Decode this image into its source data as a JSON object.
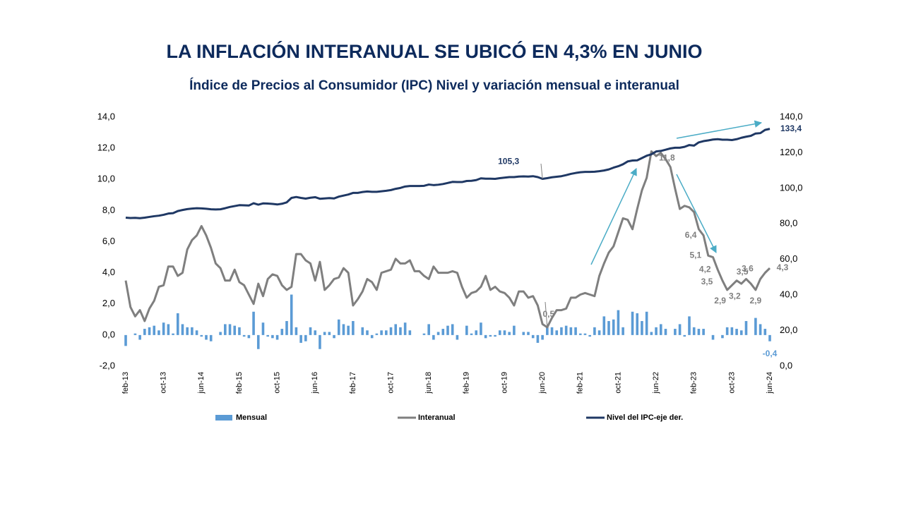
{
  "chart_data": {
    "type": "combo",
    "title": "LA INFLACIÓN INTERANUAL SE UBICÓ EN 4,3% EN JUNIO",
    "subtitle": "Índice de Precios al Consumidor (IPC) Nivel y variación mensual e interanual",
    "categories": [
      "feb-13",
      null,
      null,
      null,
      null,
      null,
      null,
      null,
      "oct-13",
      null,
      null,
      null,
      null,
      null,
      null,
      null,
      "jun-14",
      null,
      null,
      null,
      null,
      null,
      null,
      null,
      "feb-15",
      null,
      null,
      null,
      null,
      null,
      null,
      null,
      "oct-15",
      null,
      null,
      null,
      null,
      null,
      null,
      null,
      "jun-16",
      null,
      null,
      null,
      null,
      null,
      null,
      null,
      "feb-17",
      null,
      null,
      null,
      null,
      null,
      null,
      null,
      "oct-17",
      null,
      null,
      null,
      null,
      null,
      null,
      null,
      "jun-18",
      null,
      null,
      null,
      null,
      null,
      null,
      null,
      "feb-19",
      null,
      null,
      null,
      null,
      null,
      null,
      null,
      "oct-19",
      null,
      null,
      null,
      null,
      null,
      null,
      null,
      "jun-20",
      null,
      null,
      null,
      null,
      null,
      null,
      null,
      "feb-21",
      null,
      null,
      null,
      null,
      null,
      null,
      null,
      "oct-21",
      null,
      null,
      null,
      null,
      null,
      null,
      null,
      "jun-22",
      null,
      null,
      null,
      null,
      null,
      null,
      null,
      "feb-23",
      null,
      null,
      null,
      null,
      null,
      null,
      null,
      "oct-23",
      null,
      null,
      null,
      null,
      null,
      null,
      null,
      "jun-24"
    ],
    "ylim": [
      -2,
      14
    ],
    "yticks": [
      {
        "value": -2,
        "label": "-2,0"
      },
      {
        "value": 0,
        "label": "0,0"
      },
      {
        "value": 2,
        "label": "2,0"
      },
      {
        "value": 4,
        "label": "4,0"
      },
      {
        "value": 6,
        "label": "6,0"
      },
      {
        "value": 8,
        "label": "8,0"
      },
      {
        "value": 10,
        "label": "10,0"
      },
      {
        "value": 12,
        "label": "12,0"
      },
      {
        "value": 14,
        "label": "14,0"
      }
    ],
    "y2lim": [
      0,
      140
    ],
    "y2ticks": [
      {
        "value": 0,
        "label": "0,0"
      },
      {
        "value": 20,
        "label": "20,0"
      },
      {
        "value": 40,
        "label": "40,0"
      },
      {
        "value": 60,
        "label": "60,0"
      },
      {
        "value": 80,
        "label": "80,0"
      },
      {
        "value": 100,
        "label": "100,0"
      },
      {
        "value": 120,
        "label": "120,0"
      },
      {
        "value": 140,
        "label": "140,0"
      }
    ],
    "grid": false,
    "legend": "bottom",
    "series": [
      {
        "name": "Mensual",
        "type": "bar",
        "color": "#5b9bd5",
        "values": [
          -0.7,
          0.0,
          0.1,
          -0.3,
          0.4,
          0.5,
          0.6,
          0.3,
          0.8,
          0.7,
          0.1,
          1.4,
          0.7,
          0.5,
          0.5,
          0.3,
          -0.1,
          -0.3,
          -0.4,
          0.0,
          0.2,
          0.7,
          0.7,
          0.6,
          0.5,
          -0.1,
          -0.2,
          1.5,
          -0.9,
          0.8,
          -0.1,
          -0.2,
          -0.3,
          0.4,
          0.9,
          2.6,
          0.5,
          -0.5,
          -0.4,
          0.5,
          0.3,
          -0.9,
          0.2,
          0.2,
          -0.2,
          1.0,
          0.7,
          0.6,
          0.9,
          0.0,
          0.5,
          0.3,
          -0.2,
          0.1,
          0.3,
          0.3,
          0.5,
          0.7,
          0.5,
          0.8,
          0.3,
          0.0,
          0.0,
          0.1,
          0.7,
          -0.3,
          0.2,
          0.4,
          0.6,
          0.7,
          -0.3,
          0.0,
          0.6,
          0.1,
          0.3,
          0.8,
          -0.2,
          -0.1,
          -0.1,
          0.3,
          0.3,
          0.2,
          0.6,
          0.0,
          0.2,
          0.2,
          -0.2,
          -0.5,
          -0.3,
          0.5,
          0.5,
          0.3,
          0.5,
          0.6,
          0.5,
          0.5,
          0.1,
          0.1,
          -0.1,
          0.5,
          0.3,
          1.2,
          0.9,
          1.0,
          1.6,
          0.5,
          0.0,
          1.5,
          1.4,
          0.9,
          1.5,
          0.2,
          0.5,
          0.7,
          0.4,
          0.0,
          0.4,
          0.7,
          -0.1,
          1.2,
          0.5,
          0.4,
          0.4,
          0.0,
          -0.3,
          0.0,
          -0.2,
          0.5,
          0.5,
          0.4,
          0.3,
          0.9,
          0.0,
          1.1,
          0.7,
          0.4,
          -0.4
        ],
        "value_labels": [
          null,
          null,
          null,
          null,
          null,
          null,
          null,
          null,
          null,
          null,
          null,
          null,
          null,
          null,
          null,
          null,
          null,
          null,
          null,
          null,
          null,
          null,
          null,
          null,
          null,
          null,
          null,
          null,
          null,
          null,
          null,
          null,
          null,
          null,
          null,
          null,
          null,
          null,
          null,
          null,
          null,
          null,
          null,
          null,
          null,
          null,
          null,
          null,
          null,
          null,
          null,
          null,
          null,
          null,
          null,
          null,
          null,
          null,
          null,
          null,
          null,
          null,
          null,
          null,
          null,
          null,
          null,
          null,
          null,
          null,
          null,
          null,
          null,
          null,
          null,
          null,
          null,
          null,
          null,
          null,
          null,
          null,
          null,
          null,
          null,
          null,
          null,
          null,
          null,
          null,
          null,
          null,
          null,
          null,
          null,
          null,
          null,
          null,
          null,
          null,
          null,
          null,
          null,
          null,
          null,
          null,
          null,
          null,
          null,
          null,
          null,
          null,
          null,
          null,
          null,
          null,
          null,
          null,
          null,
          null,
          null,
          null,
          null,
          null,
          null,
          null,
          null,
          null,
          null,
          null,
          null,
          null,
          null,
          null,
          null,
          null,
          "-0,4"
        ]
      },
      {
        "name": "Interanual",
        "type": "line",
        "color": "#7f7f7f",
        "values": [
          3.5,
          1.8,
          1.2,
          1.6,
          0.9,
          1.7,
          2.2,
          3.1,
          3.2,
          4.4,
          4.4,
          3.8,
          4.0,
          5.5,
          6.1,
          6.4,
          7.0,
          6.4,
          5.6,
          4.6,
          4.3,
          3.5,
          3.5,
          4.2,
          3.4,
          3.2,
          2.6,
          2.0,
          3.3,
          2.5,
          3.6,
          3.9,
          3.8,
          3.2,
          2.9,
          3.1,
          5.2,
          5.2,
          4.8,
          4.6,
          3.5,
          4.7,
          2.9,
          3.2,
          3.6,
          3.7,
          4.3,
          4.0,
          1.9,
          2.3,
          2.8,
          3.6,
          3.4,
          2.9,
          4.0,
          4.1,
          4.2,
          4.9,
          4.6,
          4.6,
          4.8,
          4.1,
          4.1,
          3.8,
          3.6,
          4.4,
          4.0,
          4.0,
          4.0,
          4.1,
          4.0,
          3.1,
          2.4,
          2.7,
          2.8,
          3.1,
          3.8,
          2.9,
          3.1,
          2.8,
          2.7,
          2.4,
          1.9,
          2.8,
          2.8,
          2.4,
          2.5,
          1.9,
          0.7,
          0.5,
          1.1,
          1.6,
          1.6,
          1.7,
          2.4,
          2.4,
          2.6,
          2.7,
          2.6,
          2.5,
          3.8,
          4.6,
          5.3,
          5.7,
          6.6,
          7.5,
          7.4,
          6.8,
          8.1,
          9.3,
          10.1,
          11.8,
          11.5,
          11.7,
          11.3,
          10.8,
          9.4,
          8.1,
          8.3,
          8.2,
          7.9,
          6.8,
          6.4,
          5.1,
          5.0,
          4.2,
          3.5,
          2.9,
          3.2,
          3.5,
          3.3,
          3.6,
          3.3,
          2.9,
          3.6,
          4.0,
          4.3
        ],
        "value_labels": [
          null,
          null,
          null,
          null,
          null,
          null,
          null,
          null,
          null,
          null,
          null,
          null,
          null,
          null,
          null,
          null,
          null,
          null,
          null,
          null,
          null,
          null,
          null,
          null,
          null,
          null,
          null,
          null,
          null,
          null,
          null,
          null,
          null,
          null,
          null,
          null,
          null,
          null,
          null,
          null,
          null,
          null,
          null,
          null,
          null,
          null,
          null,
          null,
          null,
          null,
          null,
          null,
          null,
          null,
          null,
          null,
          null,
          null,
          null,
          null,
          null,
          null,
          null,
          null,
          null,
          null,
          null,
          null,
          null,
          null,
          null,
          null,
          null,
          null,
          null,
          null,
          null,
          null,
          null,
          null,
          null,
          null,
          null,
          null,
          null,
          null,
          null,
          null,
          null,
          "0,5",
          null,
          null,
          null,
          null,
          null,
          null,
          null,
          null,
          null,
          null,
          null,
          null,
          null,
          null,
          null,
          null,
          null,
          null,
          null,
          null,
          null,
          "11,8",
          null,
          null,
          null,
          null,
          null,
          null,
          null,
          null,
          null,
          null,
          "6,4",
          "5,1",
          null,
          "4,2",
          "3,5",
          "2,9",
          "3,2",
          "3,5",
          null,
          "3,6",
          null,
          "2,9",
          null,
          null,
          "4,3"
        ]
      },
      {
        "name": "Nivel del IPC-eje der.",
        "type": "line",
        "axis": "y2",
        "color": "#1f3864",
        "values": [
          83.5,
          83.3,
          83.4,
          83.2,
          83.5,
          83.9,
          84.3,
          84.6,
          85.1,
          85.8,
          86.0,
          87.2,
          87.8,
          88.3,
          88.6,
          88.8,
          88.7,
          88.5,
          88.2,
          88.1,
          88.2,
          88.8,
          89.5,
          90.0,
          90.5,
          90.4,
          90.3,
          91.6,
          90.8,
          91.5,
          91.4,
          91.2,
          90.9,
          91.3,
          92.1,
          94.6,
          95.1,
          94.6,
          94.2,
          94.7,
          95.0,
          94.1,
          94.3,
          94.5,
          94.3,
          95.3,
          95.9,
          96.5,
          97.4,
          97.4,
          97.9,
          98.2,
          98.0,
          98.0,
          98.3,
          98.6,
          99.0,
          99.7,
          100.2,
          101.0,
          101.3,
          101.3,
          101.3,
          101.4,
          102.1,
          101.8,
          102.0,
          102.4,
          103.0,
          103.6,
          103.5,
          103.5,
          104.1,
          104.2,
          104.6,
          105.6,
          105.4,
          105.4,
          105.3,
          105.7,
          106.0,
          106.3,
          106.3,
          106.6,
          106.7,
          106.6,
          106.8,
          106.3,
          105.3,
          105.7,
          106.2,
          106.5,
          106.8,
          107.4,
          108.1,
          108.6,
          109.0,
          109.2,
          109.2,
          109.3,
          109.6,
          110.0,
          110.6,
          111.6,
          112.4,
          113.5,
          115.1,
          115.6,
          115.7,
          117.0,
          118.3,
          119.1,
          120.7,
          121.0,
          121.7,
          122.4,
          122.8,
          122.8,
          123.3,
          124.3,
          124.0,
          125.8,
          126.5,
          126.9,
          127.4,
          127.6,
          127.3,
          127.3,
          127.1,
          127.6,
          128.4,
          129.0,
          129.5,
          130.8,
          131.0,
          132.8,
          133.4
        ],
        "value_labels": [
          null,
          null,
          null,
          null,
          null,
          null,
          null,
          null,
          null,
          null,
          null,
          null,
          null,
          null,
          null,
          null,
          null,
          null,
          null,
          null,
          null,
          null,
          null,
          null,
          null,
          null,
          null,
          null,
          null,
          null,
          null,
          null,
          null,
          null,
          null,
          null,
          null,
          null,
          null,
          null,
          null,
          null,
          null,
          null,
          null,
          null,
          null,
          null,
          null,
          null,
          null,
          null,
          null,
          null,
          null,
          null,
          null,
          null,
          null,
          null,
          null,
          null,
          null,
          null,
          null,
          null,
          null,
          null,
          null,
          null,
          null,
          null,
          null,
          null,
          null,
          null,
          null,
          null,
          null,
          null,
          null,
          null,
          null,
          null,
          null,
          null,
          null,
          null,
          "105,3",
          null,
          null,
          null,
          null,
          null,
          null,
          null,
          null,
          null,
          null,
          null,
          null,
          null,
          null,
          null,
          null,
          null,
          null,
          null,
          null,
          null,
          null,
          null,
          null,
          null,
          null,
          null,
          null,
          null,
          null,
          null,
          null,
          null,
          null,
          null,
          null,
          null,
          null,
          null,
          null,
          null,
          null,
          null,
          null,
          null,
          null,
          null,
          "133,4"
        ]
      }
    ]
  }
}
